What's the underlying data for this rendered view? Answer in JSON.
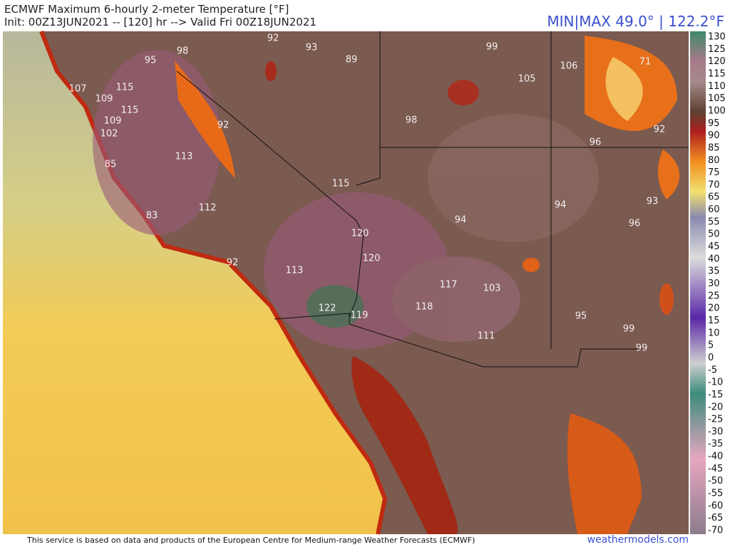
{
  "header": {
    "title": "ECMWF Maximum 6-hourly 2-meter Temperature [°F]",
    "subtitle": "Init: 00Z13JUN2021 -- [120] hr --> Valid Fri 00Z18JUN2021",
    "minmax": "MIN|MAX 49.0° | 122.2°F"
  },
  "map": {
    "point_labels": [
      "92",
      "93",
      "89",
      "99",
      "98",
      "95",
      "105",
      "106",
      "71",
      "107",
      "115",
      "109",
      "115",
      "109",
      "102",
      "92",
      "98",
      "92",
      "96",
      "113",
      "85",
      "115",
      "94",
      "93",
      "112",
      "83",
      "94",
      "96",
      "120",
      "120",
      "92",
      "113",
      "117",
      "103",
      "118",
      "122",
      "119",
      "95",
      "99",
      "111",
      "99"
    ]
  },
  "colorbar": {
    "labels": [
      130,
      125,
      120,
      115,
      110,
      105,
      100,
      95,
      90,
      85,
      80,
      75,
      70,
      65,
      60,
      55,
      50,
      45,
      40,
      35,
      30,
      25,
      20,
      15,
      10,
      5,
      0,
      -5,
      -10,
      -15,
      -20,
      -25,
      -30,
      -35,
      -40,
      -45,
      -50,
      -55,
      -60,
      -65,
      -70
    ]
  },
  "footer": {
    "credit": "This service is based on data and products of the European Centre for Medium-range Weather Forecasts (ECMWF)",
    "watermark": "weathermodels.com"
  }
}
